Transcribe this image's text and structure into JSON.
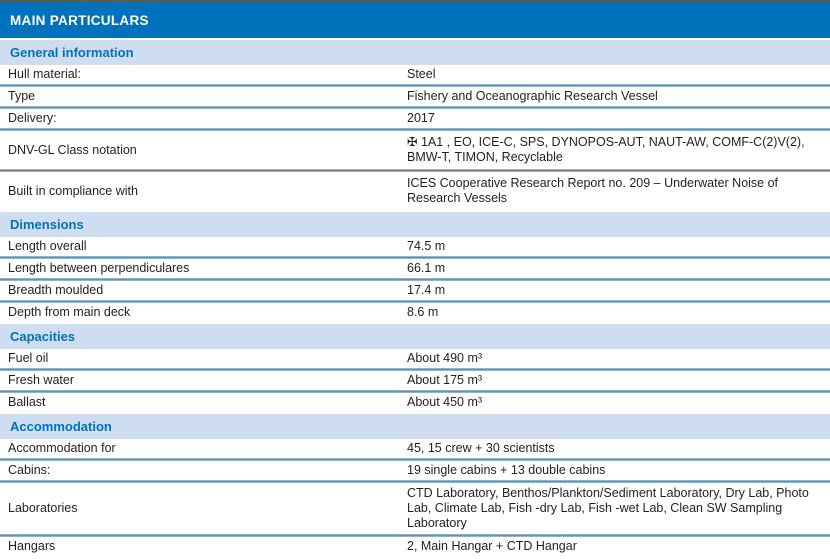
{
  "table": {
    "title": "MAIN PARTICULARS",
    "colors": {
      "accent": "#0072BC",
      "band-bg": "#CEDEF0",
      "title-text": "#FFFFFF",
      "body-text": "#231F20",
      "divider-blue": "#4F89AE",
      "divider-blue-edge": "#A9CBDD",
      "divider-gray": "#6C6C6C",
      "divider-gray-edge": "#CFCFCF",
      "top-border": "#5A5E51"
    },
    "sections": [
      {
        "title": "General information",
        "rows": [
          {
            "label": "Hull material:",
            "value": "Steel"
          },
          {
            "label": "Type",
            "value": "Fishery and Oceanographic Research Vessel"
          },
          {
            "label": "Delivery:",
            "value": "2017"
          },
          {
            "label": "DNV-GL Class notation",
            "value": "✠ 1A1 , EO, ICE-C, SPS, DYNOPOS-AUT, NAUT-AW, COMF-C(2)V(2), BMW-T, TIMON, Recyclable"
          },
          {
            "label": "Built in compliance with",
            "value": "ICES Cooperative Research Report no. 209 – Underwater Noise of Research Vessels"
          }
        ]
      },
      {
        "title": "Dimensions",
        "rows": [
          {
            "label": "Length overall",
            "value": "74.5 m"
          },
          {
            "label": "Length between perpendiculares",
            "value": "66.1 m"
          },
          {
            "label": "Breadth moulded",
            "value": "17.4 m"
          },
          {
            "label": "Depth from main deck",
            "value": "8.6 m"
          }
        ]
      },
      {
        "title": "Capacities",
        "rows": [
          {
            "label": "Fuel oil",
            "value": "About 490 m³"
          },
          {
            "label": "Fresh water",
            "value": "About 175 m³"
          },
          {
            "label": "Ballast",
            "value": "About 450 m³"
          }
        ]
      },
      {
        "title": "Accommodation",
        "rows": [
          {
            "label": "Accommodation for",
            "value": "45, 15 crew + 30 scientists"
          },
          {
            "label": "Cabins:",
            "value": "19 single cabins + 13 double cabins"
          },
          {
            "label": "Laboratories",
            "value": "CTD Laboratory, Benthos/Plankton/Sediment Laboratory, Dry Lab, Photo Lab, Climate Lab, Fish -dry Lab, Fish -wet Lab, Clean SW Sampling Laboratory"
          },
          {
            "label": "Hangars",
            "value": "2, Main Hangar + CTD Hangar"
          }
        ]
      }
    ]
  }
}
